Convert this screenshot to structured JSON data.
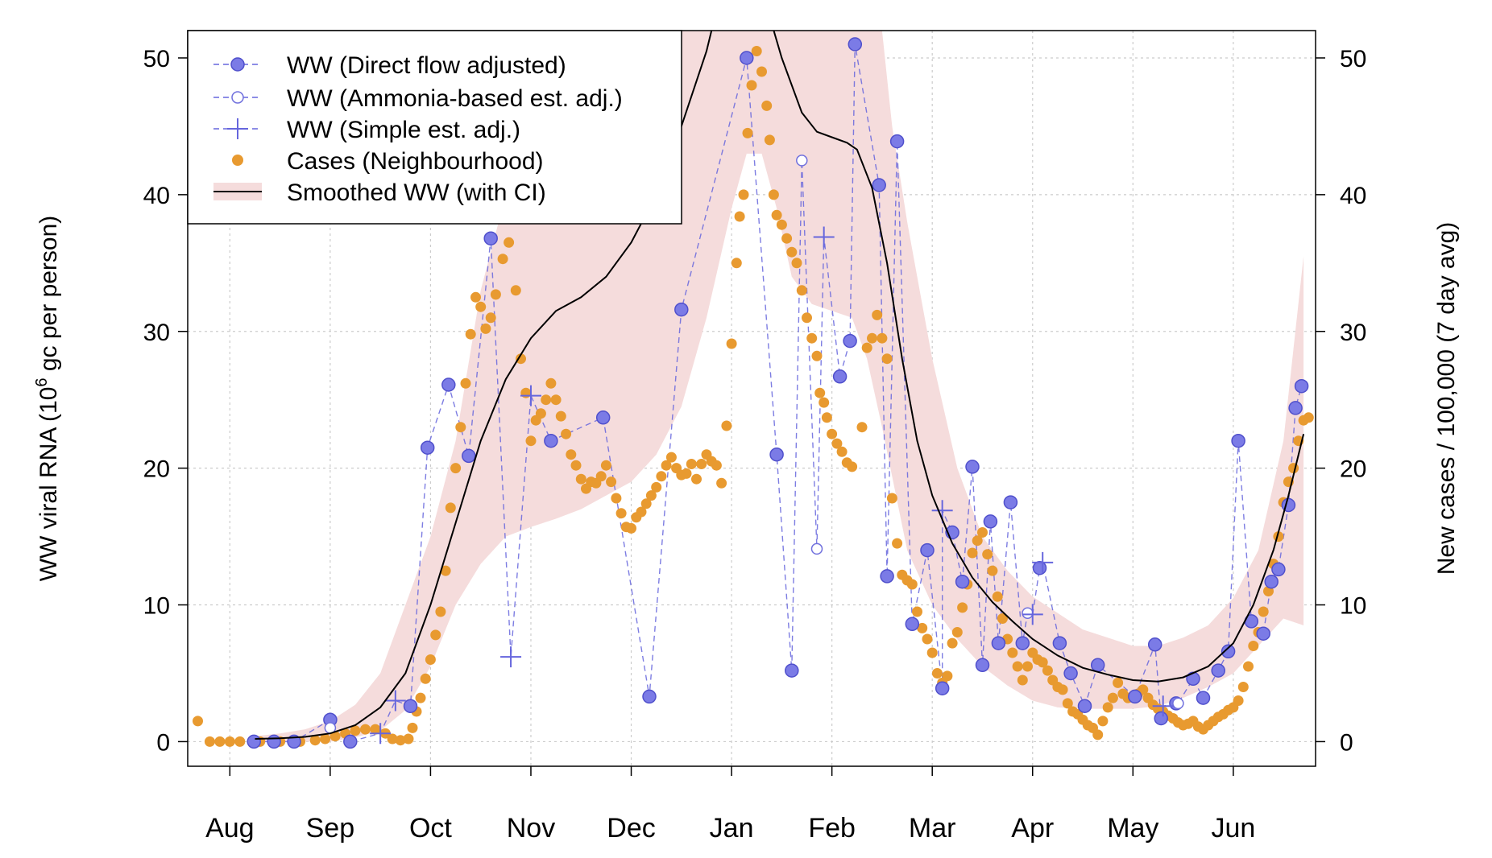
{
  "chart_data": {
    "type": "line",
    "y_label_left_main": "WW viral RNA (10",
    "y_label_left_sup": "6",
    "y_label_left_rest": " gc per person)",
    "y_label_right": "New cases / 100,000 (7 day avg)",
    "x_ticks": [
      "Aug",
      "Sep",
      "Oct",
      "Nov",
      "Dec",
      "Jan",
      "Feb",
      "Mar",
      "Apr",
      "May",
      "Jun"
    ],
    "y_ticks": [
      0,
      10,
      20,
      30,
      40,
      50
    ],
    "ylim": [
      -1.8,
      52
    ],
    "xlim": [
      -0.42,
      10.82
    ],
    "legend": {
      "placement": "top-left",
      "entries": [
        "WW (Direct flow adjusted)",
        "WW (Ammonia-based est. adj.)",
        "WW (Simple est. adj.)",
        "Cases (Neighbourhood)",
        "Smoothed WW (with CI)"
      ]
    },
    "colors": {
      "ww": "#6666dd",
      "cases": "#e89a30",
      "smooth": "#000000",
      "ci": "#f5dcdc",
      "grid": "#cccccc"
    },
    "ww_direct": [
      [
        0.24,
        0
      ],
      [
        0.44,
        0
      ],
      [
        0.64,
        0
      ],
      [
        1.0,
        1.6
      ],
      [
        1.2,
        0
      ],
      [
        1.8,
        2.6
      ],
      [
        1.97,
        21.5
      ],
      [
        2.18,
        26.1
      ],
      [
        2.38,
        20.9
      ],
      [
        2.6,
        36.8
      ],
      [
        3.2,
        22
      ],
      [
        3.72,
        23.7
      ],
      [
        4.18,
        3.3
      ],
      [
        4.5,
        31.6
      ],
      [
        5.15,
        50
      ],
      [
        5.45,
        21
      ],
      [
        5.6,
        5.2
      ],
      [
        6.08,
        26.7
      ],
      [
        6.18,
        29.3
      ],
      [
        6.23,
        51
      ],
      [
        6.47,
        40.7
      ],
      [
        6.65,
        43.9
      ],
      [
        6.55,
        12.1
      ],
      [
        6.8,
        8.6
      ],
      [
        6.95,
        14
      ],
      [
        7.1,
        3.9
      ],
      [
        7.2,
        15.3
      ],
      [
        7.3,
        11.7
      ],
      [
        7.4,
        20.1
      ],
      [
        7.5,
        5.6
      ],
      [
        7.58,
        16.1
      ],
      [
        7.66,
        7.2
      ],
      [
        7.78,
        17.5
      ],
      [
        7.9,
        7.2
      ],
      [
        8.07,
        12.7
      ],
      [
        8.27,
        7.2
      ],
      [
        8.38,
        5
      ],
      [
        8.52,
        2.6
      ],
      [
        8.65,
        5.6
      ],
      [
        9.02,
        3.3
      ],
      [
        9.22,
        7.1
      ],
      [
        9.28,
        1.7
      ],
      [
        9.43,
        2.8
      ],
      [
        9.6,
        4.6
      ],
      [
        9.7,
        3.2
      ],
      [
        9.85,
        5.2
      ],
      [
        9.95,
        6.6
      ],
      [
        10.05,
        22
      ],
      [
        10.18,
        8.8
      ],
      [
        10.3,
        7.9
      ],
      [
        10.38,
        11.7
      ],
      [
        10.45,
        12.6
      ],
      [
        10.55,
        17.3
      ],
      [
        10.62,
        24.4
      ],
      [
        10.68,
        26
      ]
    ],
    "ww_ammonia": [
      [
        1.0,
        1.0
      ],
      [
        5.7,
        42.5
      ],
      [
        5.85,
        14.1
      ],
      [
        7.95,
        9.4
      ],
      [
        9.45,
        2.8
      ]
    ],
    "ww_simple": [
      [
        1.5,
        0.6
      ],
      [
        1.65,
        3
      ],
      [
        2.8,
        6.2
      ],
      [
        3.0,
        25.3
      ],
      [
        5.92,
        36.9
      ],
      [
        7.1,
        16.9
      ],
      [
        8.0,
        9.3
      ],
      [
        8.1,
        13.1
      ],
      [
        9.3,
        2.6
      ]
    ],
    "cases": [
      [
        -0.32,
        1.5
      ],
      [
        -0.2,
        0
      ],
      [
        -0.1,
        0
      ],
      [
        0,
        0
      ],
      [
        0.1,
        0
      ],
      [
        0.3,
        0
      ],
      [
        0.5,
        0
      ],
      [
        0.7,
        0
      ],
      [
        0.85,
        0.1
      ],
      [
        0.95,
        0.2
      ],
      [
        1.05,
        0.4
      ],
      [
        1.15,
        0.6
      ],
      [
        1.25,
        0.8
      ],
      [
        1.35,
        0.9
      ],
      [
        1.45,
        0.9
      ],
      [
        1.55,
        0.6
      ],
      [
        1.62,
        0.2
      ],
      [
        1.7,
        0.1
      ],
      [
        1.78,
        0.2
      ],
      [
        1.82,
        1.0
      ],
      [
        1.86,
        2.2
      ],
      [
        1.9,
        3.2
      ],
      [
        1.95,
        4.6
      ],
      [
        2.0,
        6
      ],
      [
        2.05,
        7.8
      ],
      [
        2.1,
        9.5
      ],
      [
        2.15,
        12.5
      ],
      [
        2.2,
        17.1
      ],
      [
        2.25,
        20
      ],
      [
        2.3,
        23
      ],
      [
        2.35,
        26.2
      ],
      [
        2.4,
        29.8
      ],
      [
        2.45,
        32.5
      ],
      [
        2.5,
        31.8
      ],
      [
        2.55,
        30.2
      ],
      [
        2.6,
        31
      ],
      [
        2.65,
        32.7
      ],
      [
        2.72,
        35.3
      ],
      [
        2.78,
        36.5
      ],
      [
        2.85,
        33
      ],
      [
        2.9,
        28
      ],
      [
        2.95,
        25.5
      ],
      [
        3.0,
        22
      ],
      [
        3.05,
        23.5
      ],
      [
        3.1,
        24
      ],
      [
        3.15,
        25
      ],
      [
        3.2,
        26.2
      ],
      [
        3.25,
        25
      ],
      [
        3.3,
        23.8
      ],
      [
        3.35,
        22.5
      ],
      [
        3.4,
        21
      ],
      [
        3.45,
        20.2
      ],
      [
        3.5,
        19.2
      ],
      [
        3.55,
        18.5
      ],
      [
        3.6,
        19
      ],
      [
        3.65,
        18.9
      ],
      [
        3.7,
        19.4
      ],
      [
        3.75,
        20.2
      ],
      [
        3.8,
        19
      ],
      [
        3.85,
        17.8
      ],
      [
        3.9,
        16.7
      ],
      [
        3.95,
        15.7
      ],
      [
        4.0,
        15.6
      ],
      [
        4.05,
        16.4
      ],
      [
        4.1,
        16.8
      ],
      [
        4.15,
        17.4
      ],
      [
        4.2,
        18
      ],
      [
        4.25,
        18.6
      ],
      [
        4.3,
        19.4
      ],
      [
        4.35,
        20.2
      ],
      [
        4.4,
        20.8
      ],
      [
        4.45,
        20
      ],
      [
        4.5,
        19.5
      ],
      [
        4.55,
        19.6
      ],
      [
        4.6,
        20.3
      ],
      [
        4.65,
        19.2
      ],
      [
        4.7,
        20.3
      ],
      [
        4.75,
        21
      ],
      [
        4.8,
        20.5
      ],
      [
        4.85,
        20.2
      ],
      [
        4.9,
        18.9
      ],
      [
        4.95,
        23.1
      ],
      [
        5.0,
        29.1
      ],
      [
        5.05,
        35
      ],
      [
        5.08,
        38.4
      ],
      [
        5.12,
        40
      ],
      [
        5.16,
        44.5
      ],
      [
        5.2,
        48
      ],
      [
        5.25,
        50.5
      ],
      [
        5.3,
        49
      ],
      [
        5.35,
        46.5
      ],
      [
        5.38,
        44
      ],
      [
        5.42,
        40
      ],
      [
        5.45,
        38.5
      ],
      [
        5.5,
        37.8
      ],
      [
        5.55,
        36.8
      ],
      [
        5.6,
        35.8
      ],
      [
        5.65,
        35
      ],
      [
        5.7,
        33
      ],
      [
        5.75,
        31
      ],
      [
        5.8,
        29.5
      ],
      [
        5.85,
        28.2
      ],
      [
        5.88,
        25.5
      ],
      [
        5.92,
        24.8
      ],
      [
        5.95,
        23.7
      ],
      [
        6.0,
        22.5
      ],
      [
        6.05,
        21.8
      ],
      [
        6.1,
        21.2
      ],
      [
        6.15,
        20.4
      ],
      [
        6.2,
        20.1
      ],
      [
        6.3,
        23
      ],
      [
        6.35,
        28.8
      ],
      [
        6.4,
        29.5
      ],
      [
        6.45,
        31.2
      ],
      [
        6.5,
        29.5
      ],
      [
        6.55,
        28
      ],
      [
        6.6,
        17.8
      ],
      [
        6.65,
        14.5
      ],
      [
        6.7,
        12.2
      ],
      [
        6.75,
        11.8
      ],
      [
        6.8,
        11.5
      ],
      [
        6.85,
        9.5
      ],
      [
        6.9,
        8.3
      ],
      [
        6.95,
        7.5
      ],
      [
        7.0,
        6.5
      ],
      [
        7.05,
        5.0
      ],
      [
        7.1,
        4.3
      ],
      [
        7.15,
        4.8
      ],
      [
        7.2,
        7.2
      ],
      [
        7.25,
        8
      ],
      [
        7.3,
        9.8
      ],
      [
        7.35,
        11.5
      ],
      [
        7.4,
        13.8
      ],
      [
        7.45,
        14.7
      ],
      [
        7.5,
        15.3
      ],
      [
        7.55,
        13.7
      ],
      [
        7.6,
        12.5
      ],
      [
        7.65,
        10.6
      ],
      [
        7.7,
        9
      ],
      [
        7.75,
        7.5
      ],
      [
        7.8,
        6.5
      ],
      [
        7.85,
        5.5
      ],
      [
        7.9,
        4.5
      ],
      [
        7.95,
        5.5
      ],
      [
        8.0,
        6.5
      ],
      [
        8.05,
        6.0
      ],
      [
        8.1,
        5.8
      ],
      [
        8.15,
        5.2
      ],
      [
        8.2,
        4.5
      ],
      [
        8.25,
        4
      ],
      [
        8.3,
        3.8
      ],
      [
        8.35,
        2.8
      ],
      [
        8.4,
        2.2
      ],
      [
        8.45,
        2.0
      ],
      [
        8.5,
        1.6
      ],
      [
        8.55,
        1.2
      ],
      [
        8.6,
        1.0
      ],
      [
        8.65,
        0.5
      ],
      [
        8.7,
        1.5
      ],
      [
        8.75,
        2.5
      ],
      [
        8.8,
        3.2
      ],
      [
        8.85,
        4.3
      ],
      [
        8.9,
        3.5
      ],
      [
        8.95,
        3.2
      ],
      [
        9.0,
        3.3
      ],
      [
        9.05,
        3.5
      ],
      [
        9.1,
        3.8
      ],
      [
        9.15,
        3.2
      ],
      [
        9.2,
        2.7
      ],
      [
        9.25,
        2.4
      ],
      [
        9.3,
        2.2
      ],
      [
        9.35,
        1.9
      ],
      [
        9.4,
        1.7
      ],
      [
        9.45,
        1.4
      ],
      [
        9.5,
        1.2
      ],
      [
        9.55,
        1.3
      ],
      [
        9.6,
        1.5
      ],
      [
        9.65,
        1.1
      ],
      [
        9.7,
        0.9
      ],
      [
        9.75,
        1.2
      ],
      [
        9.8,
        1.5
      ],
      [
        9.85,
        1.8
      ],
      [
        9.9,
        2.0
      ],
      [
        9.95,
        2.3
      ],
      [
        10.0,
        2.5
      ],
      [
        10.05,
        3
      ],
      [
        10.1,
        4
      ],
      [
        10.15,
        5.5
      ],
      [
        10.2,
        7
      ],
      [
        10.25,
        8
      ],
      [
        10.3,
        9.5
      ],
      [
        10.35,
        11
      ],
      [
        10.4,
        13
      ],
      [
        10.45,
        15
      ],
      [
        10.5,
        17.5
      ],
      [
        10.55,
        19
      ],
      [
        10.6,
        20
      ],
      [
        10.65,
        22
      ],
      [
        10.7,
        23.5
      ],
      [
        10.75,
        23.7
      ]
    ],
    "smooth": [
      [
        0.25,
        0.2
      ],
      [
        0.5,
        0.25
      ],
      [
        0.75,
        0.35
      ],
      [
        1.0,
        0.6
      ],
      [
        1.25,
        1.2
      ],
      [
        1.5,
        2.5
      ],
      [
        1.75,
        5
      ],
      [
        2.0,
        10
      ],
      [
        2.25,
        16
      ],
      [
        2.5,
        22
      ],
      [
        2.75,
        26.5
      ],
      [
        3.0,
        29.5
      ],
      [
        3.25,
        31.5
      ],
      [
        3.5,
        32.5
      ],
      [
        3.75,
        34
      ],
      [
        4.0,
        36.5
      ],
      [
        4.25,
        40
      ],
      [
        4.5,
        45
      ],
      [
        4.75,
        50.5
      ],
      [
        4.9,
        55
      ],
      [
        5.3,
        55
      ],
      [
        5.5,
        50
      ],
      [
        5.7,
        46
      ],
      [
        5.85,
        44.6
      ],
      [
        6.0,
        44.2
      ],
      [
        6.15,
        43.8
      ],
      [
        6.25,
        43.3
      ],
      [
        6.4,
        40.5
      ],
      [
        6.55,
        35
      ],
      [
        6.7,
        28
      ],
      [
        6.85,
        22
      ],
      [
        7.0,
        18
      ],
      [
        7.2,
        14.5
      ],
      [
        7.4,
        12
      ],
      [
        7.6,
        10.2
      ],
      [
        7.8,
        8.8
      ],
      [
        8.0,
        7.5
      ],
      [
        8.25,
        6.3
      ],
      [
        8.5,
        5.4
      ],
      [
        8.75,
        4.9
      ],
      [
        9.0,
        4.5
      ],
      [
        9.25,
        4.4
      ],
      [
        9.5,
        4.7
      ],
      [
        9.75,
        5.5
      ],
      [
        10.0,
        7.2
      ],
      [
        10.2,
        10
      ],
      [
        10.4,
        14
      ],
      [
        10.55,
        18
      ],
      [
        10.7,
        22.5
      ]
    ],
    "ci_upper": [
      [
        0.25,
        0.4
      ],
      [
        0.5,
        0.6
      ],
      [
        0.75,
        0.9
      ],
      [
        1.0,
        1.5
      ],
      [
        1.25,
        2.7
      ],
      [
        1.5,
        5
      ],
      [
        1.75,
        10
      ],
      [
        2.0,
        15
      ],
      [
        2.25,
        22
      ],
      [
        2.5,
        33
      ],
      [
        2.75,
        40
      ],
      [
        3.0,
        45
      ],
      [
        3.5,
        52
      ],
      [
        4.5,
        52
      ],
      [
        5.0,
        52
      ],
      [
        6.0,
        52
      ],
      [
        6.5,
        52
      ],
      [
        6.6,
        45
      ],
      [
        6.75,
        38
      ],
      [
        6.9,
        32
      ],
      [
        7.0,
        28
      ],
      [
        7.25,
        20
      ],
      [
        7.5,
        15
      ],
      [
        7.75,
        12.5
      ],
      [
        8.0,
        10.6
      ],
      [
        8.5,
        8.2
      ],
      [
        9.0,
        7
      ],
      [
        9.25,
        7
      ],
      [
        9.5,
        7.6
      ],
      [
        9.75,
        8.5
      ],
      [
        10.0,
        10.5
      ],
      [
        10.25,
        14
      ],
      [
        10.5,
        22
      ],
      [
        10.7,
        35.5
      ]
    ],
    "ci_lower": [
      [
        0.25,
        0
      ],
      [
        0.5,
        0
      ],
      [
        0.75,
        0
      ],
      [
        1.0,
        0
      ],
      [
        1.25,
        0.3
      ],
      [
        1.5,
        0.8
      ],
      [
        1.75,
        2.3
      ],
      [
        2.0,
        5.5
      ],
      [
        2.25,
        10
      ],
      [
        2.5,
        13
      ],
      [
        2.75,
        15
      ],
      [
        3.0,
        15.7
      ],
      [
        3.25,
        16.3
      ],
      [
        3.5,
        17
      ],
      [
        3.75,
        18
      ],
      [
        4.0,
        19
      ],
      [
        4.25,
        21
      ],
      [
        4.5,
        24.5
      ],
      [
        4.75,
        31
      ],
      [
        5.0,
        39
      ],
      [
        5.15,
        43
      ],
      [
        5.3,
        43
      ],
      [
        5.45,
        39
      ],
      [
        5.6,
        34
      ],
      [
        5.8,
        32
      ],
      [
        6.0,
        31.5
      ],
      [
        6.2,
        31
      ],
      [
        6.35,
        28
      ],
      [
        6.5,
        23
      ],
      [
        6.75,
        14
      ],
      [
        7.0,
        10
      ],
      [
        7.25,
        7.5
      ],
      [
        7.5,
        5.5
      ],
      [
        7.75,
        4.1
      ],
      [
        8.0,
        3
      ],
      [
        8.25,
        2.5
      ],
      [
        8.5,
        2.4
      ],
      [
        8.75,
        2.4
      ],
      [
        9.0,
        2.4
      ],
      [
        9.25,
        2.6
      ],
      [
        9.5,
        3.2
      ],
      [
        9.75,
        4
      ],
      [
        10.0,
        5
      ],
      [
        10.25,
        7
      ],
      [
        10.5,
        9
      ],
      [
        10.7,
        8.5
      ]
    ]
  }
}
